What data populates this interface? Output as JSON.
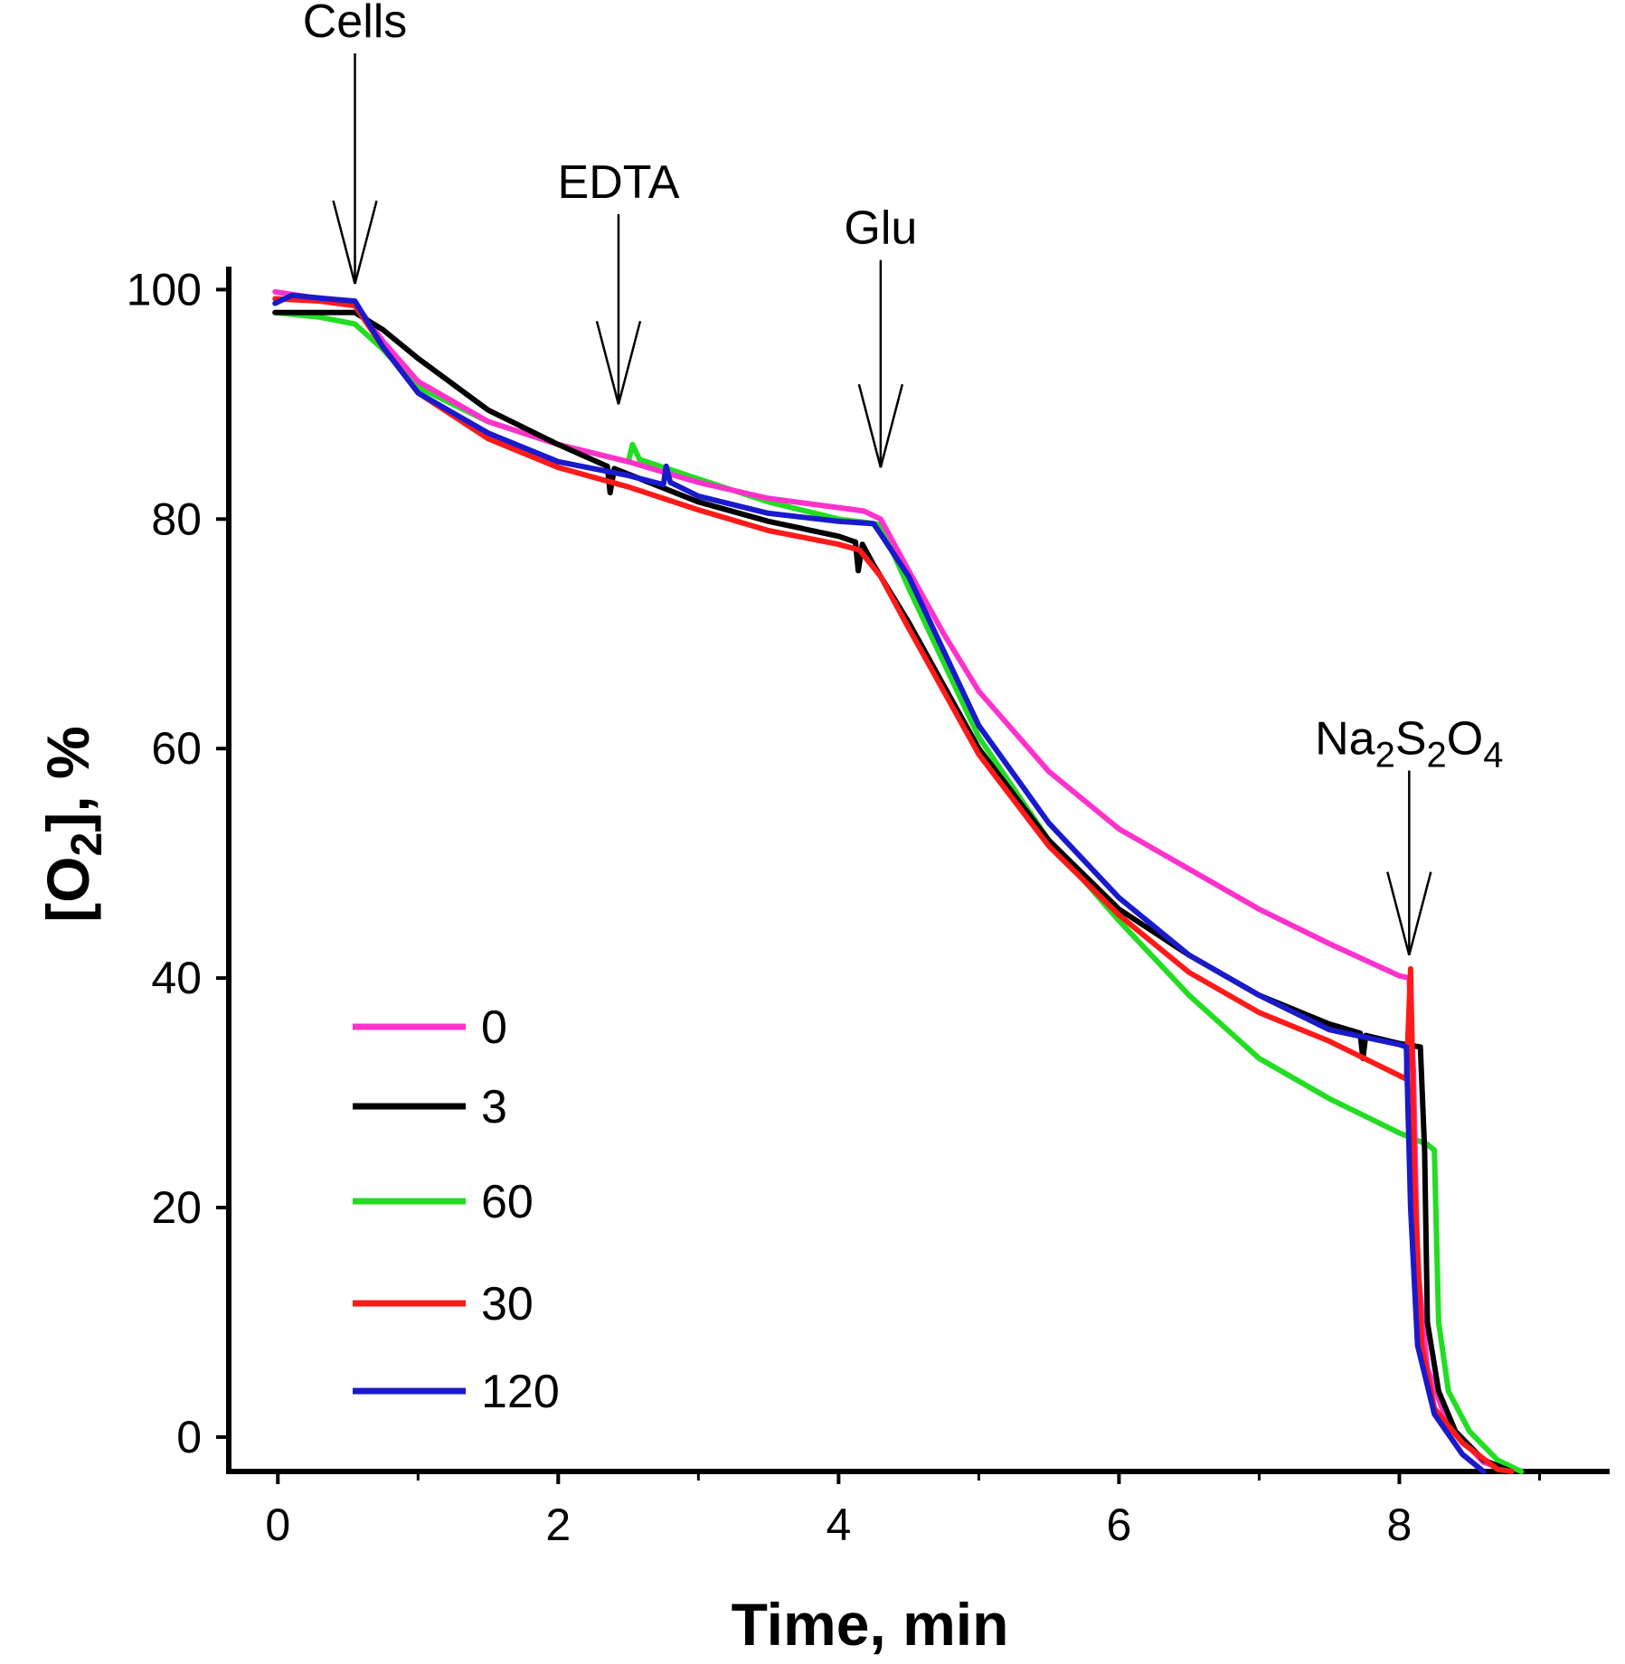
{
  "chart_data": {
    "type": "line",
    "title": "",
    "xlabel": "Time, min",
    "ylabel": {
      "main": "[O",
      "sub": "2",
      "rest": "], %"
    },
    "xlim": [
      -0.35,
      9.5
    ],
    "ylim": [
      -3,
      102
    ],
    "xticks": [
      0,
      2,
      4,
      6,
      8
    ],
    "yticks": [
      0,
      20,
      40,
      60,
      80,
      100
    ],
    "grid": false,
    "legend": {
      "placement": "bottom-left",
      "entries": [
        "0",
        "3",
        "60",
        "30",
        "120"
      ]
    },
    "annotations": [
      {
        "label": "Cells",
        "x": 0.55,
        "y": 100.5,
        "text_y": 122
      },
      {
        "label": "EDTA",
        "x": 2.43,
        "y": 90,
        "text_y": 108
      },
      {
        "label": "Glu",
        "x": 4.3,
        "y": 84.5,
        "text_y": 104
      },
      {
        "label": {
          "main": "Na",
          "s1": "2",
          "m2": "S",
          "s2": "2",
          "m3": "O",
          "s3": "4"
        },
        "x": 8.07,
        "y": 42,
        "text_y": 59.5
      }
    ],
    "series": [
      {
        "name": "0",
        "color": "#ff33cc",
        "points": [
          [
            -0.02,
            99.8
          ],
          [
            0.3,
            99.2
          ],
          [
            0.55,
            98.8
          ],
          [
            0.75,
            95.5
          ],
          [
            1.0,
            92
          ],
          [
            1.5,
            88.5
          ],
          [
            2.0,
            86.5
          ],
          [
            2.5,
            85
          ],
          [
            3.0,
            83.2
          ],
          [
            3.5,
            81.8
          ],
          [
            4.0,
            81
          ],
          [
            4.18,
            80.7
          ],
          [
            4.3,
            80
          ],
          [
            4.5,
            75.5
          ],
          [
            4.75,
            70
          ],
          [
            5.0,
            65
          ],
          [
            5.5,
            58
          ],
          [
            6.0,
            53
          ],
          [
            6.5,
            49.5
          ],
          [
            7.0,
            46
          ],
          [
            7.5,
            43
          ],
          [
            8.0,
            40.2
          ],
          [
            8.07,
            40
          ],
          [
            8.1,
            32
          ],
          [
            8.13,
            15
          ],
          [
            8.2,
            6
          ],
          [
            8.35,
            1
          ],
          [
            8.6,
            -2.2
          ],
          [
            8.8,
            -3
          ]
        ]
      },
      {
        "name": "3",
        "color": "#000000",
        "points": [
          [
            -0.02,
            98
          ],
          [
            0.3,
            98
          ],
          [
            0.55,
            98
          ],
          [
            0.75,
            96.5
          ],
          [
            1.0,
            94
          ],
          [
            1.5,
            89.5
          ],
          [
            2.0,
            86.5
          ],
          [
            2.35,
            84.6
          ],
          [
            2.37,
            82.3
          ],
          [
            2.4,
            84.4
          ],
          [
            3.0,
            81.5
          ],
          [
            3.5,
            79.8
          ],
          [
            4.0,
            78.5
          ],
          [
            4.12,
            78
          ],
          [
            4.14,
            75.5
          ],
          [
            4.17,
            77.8
          ],
          [
            4.25,
            76
          ],
          [
            4.5,
            71
          ],
          [
            4.75,
            65.5
          ],
          [
            5.0,
            60
          ],
          [
            5.5,
            52
          ],
          [
            6.0,
            46
          ],
          [
            6.5,
            42
          ],
          [
            7.0,
            38.5
          ],
          [
            7.5,
            36
          ],
          [
            7.72,
            35.2
          ],
          [
            7.74,
            33
          ],
          [
            7.76,
            35
          ],
          [
            8.0,
            34.3
          ],
          [
            8.15,
            34
          ],
          [
            8.18,
            25
          ],
          [
            8.2,
            10
          ],
          [
            8.28,
            4
          ],
          [
            8.4,
            0.5
          ],
          [
            8.6,
            -2
          ],
          [
            8.8,
            -3
          ]
        ]
      },
      {
        "name": "60",
        "color": "#22dd22",
        "points": [
          [
            -0.02,
            98
          ],
          [
            0.3,
            97.6
          ],
          [
            0.55,
            97
          ],
          [
            0.75,
            94.8
          ],
          [
            1.0,
            91.5
          ],
          [
            1.5,
            88.5
          ],
          [
            2.0,
            86.5
          ],
          [
            2.5,
            85
          ],
          [
            2.53,
            86.5
          ],
          [
            2.58,
            85.2
          ],
          [
            3.0,
            83.5
          ],
          [
            3.5,
            81.5
          ],
          [
            4.0,
            80
          ],
          [
            4.2,
            79.7
          ],
          [
            4.3,
            79.5
          ],
          [
            4.5,
            74
          ],
          [
            4.75,
            67.5
          ],
          [
            5.0,
            61
          ],
          [
            5.5,
            52
          ],
          [
            6.0,
            45
          ],
          [
            6.5,
            38.5
          ],
          [
            7.0,
            33
          ],
          [
            7.5,
            29.5
          ],
          [
            8.0,
            26.5
          ],
          [
            8.2,
            25.5
          ],
          [
            8.25,
            25
          ],
          [
            8.28,
            10
          ],
          [
            8.35,
            4
          ],
          [
            8.5,
            0.5
          ],
          [
            8.7,
            -2
          ],
          [
            8.87,
            -3
          ]
        ]
      },
      {
        "name": "30",
        "color": "#ff1a1a",
        "points": [
          [
            -0.02,
            99.2
          ],
          [
            0.3,
            99
          ],
          [
            0.55,
            98.6
          ],
          [
            0.75,
            95
          ],
          [
            1.0,
            91
          ],
          [
            1.5,
            87
          ],
          [
            2.0,
            84.5
          ],
          [
            2.5,
            82.8
          ],
          [
            3.0,
            80.8
          ],
          [
            3.5,
            79
          ],
          [
            4.0,
            77.8
          ],
          [
            4.15,
            77.3
          ],
          [
            4.3,
            75
          ],
          [
            4.5,
            70.5
          ],
          [
            4.75,
            65
          ],
          [
            5.0,
            59.5
          ],
          [
            5.5,
            51.5
          ],
          [
            6.0,
            45.5
          ],
          [
            6.5,
            40.5
          ],
          [
            7.0,
            37
          ],
          [
            7.5,
            34.5
          ],
          [
            8.0,
            31.5
          ],
          [
            8.05,
            31.2
          ],
          [
            8.08,
            40.8
          ],
          [
            8.11,
            22
          ],
          [
            8.16,
            8
          ],
          [
            8.25,
            2.5
          ],
          [
            8.45,
            -0.5
          ],
          [
            8.7,
            -2.8
          ],
          [
            8.8,
            -3
          ]
        ]
      },
      {
        "name": "120",
        "color": "#1a1acc",
        "points": [
          [
            -0.02,
            98.8
          ],
          [
            0.1,
            99.5
          ],
          [
            0.35,
            99.2
          ],
          [
            0.55,
            99
          ],
          [
            0.75,
            95
          ],
          [
            1.0,
            91
          ],
          [
            1.5,
            87.5
          ],
          [
            2.0,
            85
          ],
          [
            2.5,
            83.8
          ],
          [
            2.75,
            83
          ],
          [
            2.77,
            84.6
          ],
          [
            2.8,
            83.2
          ],
          [
            3.0,
            82
          ],
          [
            3.5,
            80.5
          ],
          [
            4.0,
            79.8
          ],
          [
            4.25,
            79.6
          ],
          [
            4.3,
            78.7
          ],
          [
            4.5,
            75
          ],
          [
            4.75,
            68.5
          ],
          [
            5.0,
            62
          ],
          [
            5.5,
            53.5
          ],
          [
            6.0,
            47
          ],
          [
            6.5,
            42
          ],
          [
            7.0,
            38.5
          ],
          [
            7.5,
            35.5
          ],
          [
            8.0,
            34.2
          ],
          [
            8.05,
            34
          ],
          [
            8.08,
            20
          ],
          [
            8.13,
            8
          ],
          [
            8.25,
            2
          ],
          [
            8.45,
            -1.5
          ],
          [
            8.6,
            -3
          ]
        ]
      }
    ]
  }
}
